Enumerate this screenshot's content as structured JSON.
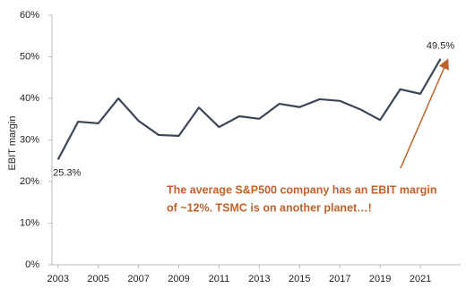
{
  "chart_data": {
    "type": "line",
    "y_label": "EBIT margin",
    "x": [
      2003,
      2004,
      2005,
      2006,
      2007,
      2008,
      2009,
      2010,
      2011,
      2012,
      2013,
      2014,
      2015,
      2016,
      2017,
      2018,
      2019,
      2020,
      2021,
      2022
    ],
    "values": [
      25.3,
      34.4,
      34.0,
      40.0,
      34.6,
      31.2,
      31.0,
      37.8,
      33.1,
      35.7,
      35.1,
      38.7,
      37.9,
      39.8,
      39.4,
      37.4,
      34.8,
      42.2,
      41.1,
      49.5
    ],
    "value_labels": [
      "25.3%",
      null,
      null,
      null,
      null,
      null,
      null,
      null,
      null,
      null,
      null,
      null,
      null,
      null,
      null,
      null,
      null,
      null,
      null,
      "49.5%"
    ],
    "color": "#3b4658",
    "xlim": [
      2002.7,
      2023.0
    ],
    "xticks": [
      2003,
      2005,
      2007,
      2009,
      2011,
      2013,
      2015,
      2017,
      2019,
      2021
    ],
    "ylim": [
      0,
      60
    ],
    "yticks": [
      {
        "value": 0,
        "label": "0%"
      },
      {
        "value": 10,
        "label": "10%"
      },
      {
        "value": 20,
        "label": "20%"
      },
      {
        "value": 30,
        "label": "30%"
      },
      {
        "value": 40,
        "label": "40%"
      },
      {
        "value": 50,
        "label": "50%"
      },
      {
        "value": 60,
        "label": "60%"
      }
    ],
    "annotation": [
      "The average S&P500 company has an EBIT margin",
      "of ~12%. TSMC is on another planet…!"
    ],
    "annotation_color": "#c0622a",
    "grid": false
  }
}
